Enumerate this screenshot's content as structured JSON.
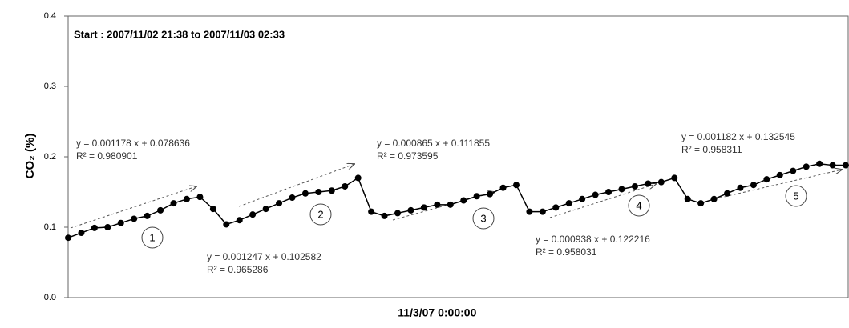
{
  "chart_data": {
    "type": "line",
    "y_label": "CO₂ (%)",
    "categories": [
      null,
      null,
      null,
      null,
      null,
      null,
      null,
      null,
      null,
      null,
      null,
      null,
      null,
      null,
      null,
      null,
      null,
      null,
      null,
      null,
      null,
      null,
      null,
      null,
      null,
      null,
      null,
      null,
      "11/3/07 0:00:00",
      null,
      null,
      null,
      null,
      null,
      null,
      null,
      null,
      null,
      null,
      null,
      null,
      null,
      null,
      null,
      null,
      null,
      null,
      null,
      null,
      null,
      null,
      null,
      null,
      null,
      null,
      null,
      null,
      null,
      null,
      null
    ],
    "values": [
      0.085,
      0.092,
      0.099,
      0.1,
      0.106,
      0.112,
      0.116,
      0.124,
      0.134,
      0.14,
      0.143,
      0.126,
      0.104,
      0.11,
      0.118,
      0.126,
      0.134,
      0.142,
      0.148,
      0.15,
      0.152,
      0.158,
      0.17,
      0.122,
      0.116,
      0.12,
      0.124,
      0.128,
      0.132,
      0.132,
      0.138,
      0.144,
      0.147,
      0.156,
      0.16,
      0.122,
      0.122,
      0.128,
      0.134,
      0.14,
      0.146,
      0.15,
      0.154,
      0.158,
      0.162,
      0.164,
      0.17,
      0.14,
      0.134,
      0.14,
      0.148,
      0.156,
      0.16,
      0.168,
      0.174,
      0.18,
      0.186,
      0.19,
      0.188,
      0.188
    ],
    "color": "#000000",
    "ylim": [
      0,
      0.4
    ],
    "yticks": [
      {
        "value": 0,
        "label": "0.0"
      },
      0.1,
      0.2,
      0.3,
      0.4
    ],
    "annotations": [
      "Start : 2007/11/02 21:38 to 2007/11/03 02:33",
      "y = 0.001178 x + 0.078636",
      "R² = 0.980901",
      "y = 0.001247 x + 0.102582",
      "R² = 0.965286",
      "y = 0.000865 x + 0.111855",
      "R² = 0.973595",
      "y = 0.000938 x + 0.122216",
      "R² = 0.958031",
      "y = 0.001182 x + 0.132545",
      "R² = 0.958311"
    ],
    "segment_labels": [
      "1",
      "2",
      "3",
      "4",
      "5"
    ]
  }
}
